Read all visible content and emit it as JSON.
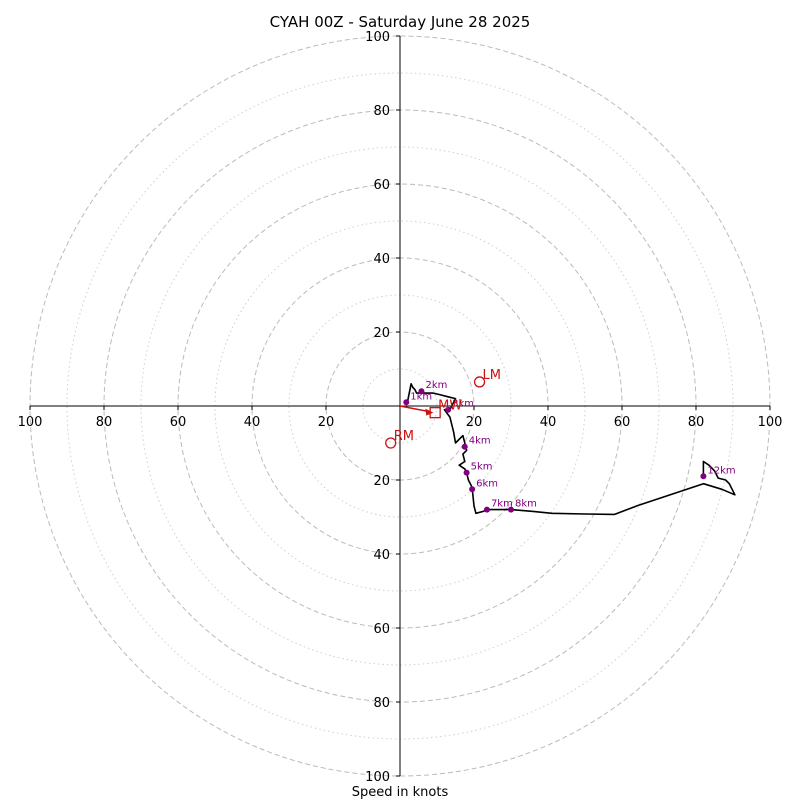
{
  "chart_data": {
    "type": "hodograph",
    "title": "CYAH 00Z - Saturday June 28 2025",
    "xlabel": "Speed in knots",
    "units": "knots",
    "xlim": [
      -100,
      100
    ],
    "ylim": [
      -100,
      100
    ],
    "rings": {
      "major": [
        10,
        30,
        50,
        70,
        90
      ],
      "major_style": "dotted",
      "minor": [
        20,
        40,
        60,
        80,
        100
      ],
      "minor_style": "dashed"
    },
    "x_ticks": [
      "100",
      "80",
      "60",
      "40",
      "20",
      "20",
      "40",
      "60",
      "80",
      "100"
    ],
    "y_ticks": [
      "100",
      "80",
      "60",
      "40",
      "20",
      "20",
      "40",
      "60",
      "80",
      "100"
    ],
    "grid": true,
    "trace": [
      [
        2,
        1
      ],
      [
        3,
        6
      ],
      [
        3.5,
        5
      ],
      [
        4,
        4.5
      ],
      [
        4.5,
        3.5
      ],
      [
        5.5,
        3.5
      ],
      [
        7,
        3.5
      ],
      [
        9,
        3.5
      ],
      [
        11,
        3
      ],
      [
        13,
        2.5
      ],
      [
        15,
        2
      ],
      [
        13.5,
        -1
      ],
      [
        12,
        -1
      ],
      [
        13.5,
        -3
      ],
      [
        14.5,
        -7
      ],
      [
        15,
        -10
      ],
      [
        17,
        -8
      ],
      [
        17.5,
        -10
      ],
      [
        18,
        -12
      ],
      [
        17,
        -13
      ],
      [
        17.5,
        -15
      ],
      [
        16,
        -16
      ],
      [
        17.5,
        -17
      ],
      [
        18,
        -18
      ],
      [
        18.5,
        -20
      ],
      [
        19.5,
        -22
      ],
      [
        20,
        -27
      ],
      [
        20.5,
        -29
      ],
      [
        22.5,
        -28.5
      ],
      [
        23.5,
        -28
      ],
      [
        28,
        -28
      ],
      [
        30,
        -28
      ],
      [
        36,
        -28.5
      ],
      [
        41,
        -29
      ],
      [
        50,
        -29.2
      ],
      [
        58,
        -29.3
      ],
      [
        64,
        -27
      ],
      [
        70,
        -25
      ],
      [
        76,
        -23
      ],
      [
        82,
        -21
      ],
      [
        87,
        -22.5
      ],
      [
        90.5,
        -24
      ],
      [
        89,
        -21
      ],
      [
        88,
        -20
      ],
      [
        86,
        -19.5
      ],
      [
        85,
        -17.5
      ],
      [
        83.5,
        -16
      ],
      [
        82,
        -15
      ],
      [
        82,
        -19
      ]
    ],
    "height_markers": [
      {
        "label": "1km",
        "u": 1.7,
        "v": 1
      },
      {
        "label": "2km",
        "u": 5.8,
        "v": 4
      },
      {
        "label": "3km",
        "u": 13,
        "v": -1
      },
      {
        "label": "4km",
        "u": 17.5,
        "v": -11
      },
      {
        "label": "5km",
        "u": 18,
        "v": -18
      },
      {
        "label": "6km",
        "u": 19.5,
        "v": -22.5
      },
      {
        "label": "7km",
        "u": 23.5,
        "v": -28
      },
      {
        "label": "8km",
        "u": 30,
        "v": -28
      },
      {
        "label": "12km",
        "u": 82,
        "v": -19
      }
    ],
    "storm_motions": [
      {
        "label": "LM",
        "u": 21.5,
        "v": 6.5,
        "marker": "circle"
      },
      {
        "label": "MW",
        "u": 9.5,
        "v": -1.8,
        "marker": "square"
      },
      {
        "label": "RM",
        "u": -2.5,
        "v": -10,
        "marker": "circle"
      }
    ],
    "shear_vector": {
      "from": [
        0,
        0
      ],
      "to": [
        9,
        -1.8
      ]
    },
    "colors": {
      "trace": "#000000",
      "height_markers": "#800080",
      "storm_motion": "#cc1111",
      "grid": "#bbbbbb"
    }
  }
}
